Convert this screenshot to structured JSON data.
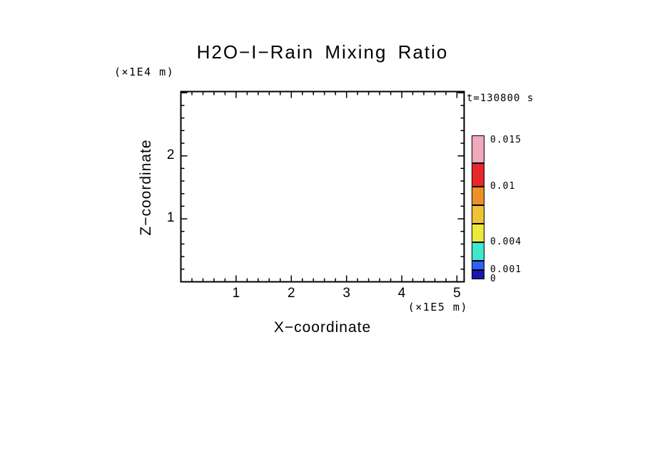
{
  "title": "H2O−I−Rain Mixing Ratio",
  "timestamp": "t=130800 s",
  "axes": {
    "x_label": "X−coordinate",
    "x_units": "(×1E5 m)",
    "z_label": "Z−coordinate",
    "z_units": "(×1E4 m)"
  },
  "chart_data": {
    "type": "heatmap",
    "title": "H2O-I-Rain Mixing Ratio",
    "xlabel": "X-coordinate (×1E5 m)",
    "ylabel": "Z-coordinate (×1E4 m)",
    "xlim": [
      0,
      5.13
    ],
    "ylim": [
      0,
      3.02
    ],
    "x_major_ticks": [
      1,
      2,
      3,
      4,
      5
    ],
    "y_major_ticks": [
      1,
      2
    ],
    "minor_tick_interval": 0.2,
    "time_annotation": "t=130800 s",
    "field_note": "plot interior is blank — no rain mixing-ratio contours visible at this timestep",
    "grid": false,
    "legend_position": "right colorbar",
    "colorbar_levels": [
      0,
      0.001,
      0.002,
      0.004,
      0.006,
      0.008,
      0.01,
      0.0125,
      0.0155
    ],
    "colorbar_colors": [
      "#1a17ae",
      "#2f62f2",
      "#3fe7cf",
      "#ece93b",
      "#eec337",
      "#ee9026",
      "#e8272b",
      "#efa8bc"
    ],
    "colorbar_tick_labels": [
      {
        "text": "0.015",
        "value": 0.015
      },
      {
        "text": "0.01",
        "value": 0.01
      },
      {
        "text": "0.004",
        "value": 0.004
      },
      {
        "text": "0.001",
        "value": 0.001
      },
      {
        "text": "0",
        "value": 0
      }
    ]
  }
}
